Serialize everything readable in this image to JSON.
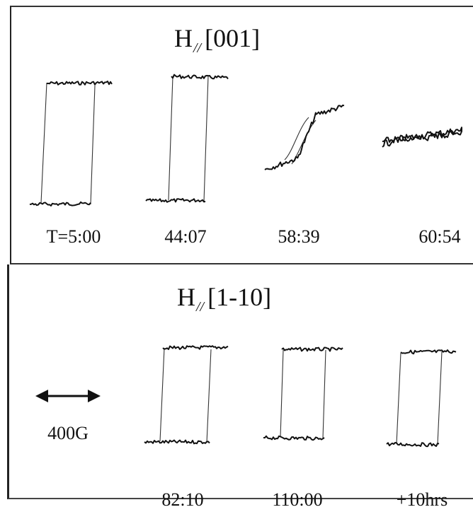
{
  "top_panel": {
    "heading_main": "H",
    "heading_sub": "//",
    "heading_dir": "[001]",
    "captions": [
      "T=5:00",
      "44:07",
      "58:39",
      "60:54"
    ]
  },
  "bottom_panel": {
    "heading_main": "H",
    "heading_sub": "//",
    "heading_dir": "[1-10]",
    "scale_label": "400G",
    "captions": [
      "82:10",
      "110:00",
      "+10hrs"
    ]
  },
  "colors": {
    "ink": "#111111",
    "frame": "#333333",
    "background": "#ffffff"
  }
}
